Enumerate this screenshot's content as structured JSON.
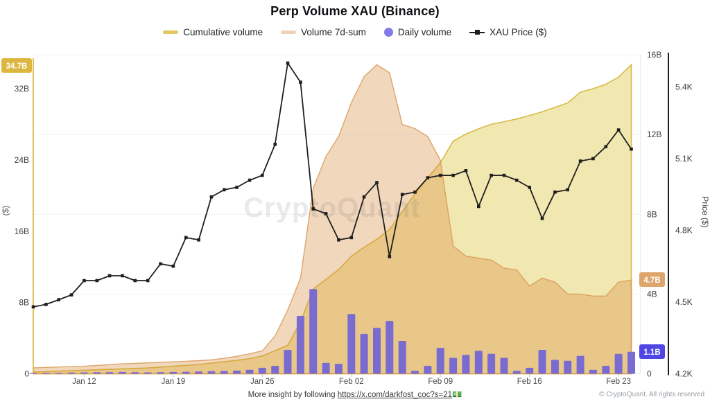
{
  "header": {
    "title": "Perp Volume XAU (Binance)"
  },
  "legend": [
    {
      "label": "Cumulative volume",
      "type": "line",
      "color": "#E2C65F"
    },
    {
      "label": "Volume 7d-sum",
      "type": "line",
      "color": "#EFD2B6"
    },
    {
      "label": "Daily volume",
      "type": "circle",
      "color": "#837AE8"
    },
    {
      "label": "XAU Price ($)",
      "type": "line-marker",
      "color": "#1F1F1F"
    }
  ],
  "watermark": "CryptoQuant",
  "badges": {
    "cumulative": "34.7B",
    "sevenday": "4.7B",
    "daily": "1.1B"
  },
  "footer": {
    "prefix": "More insight by following ",
    "link": "https://x.com/darkfost_coc?s=21",
    "emoji": "💵",
    "copyright": "© CryptoQuant. All rights reserved"
  },
  "colors": {
    "cumulative_fill": "#F1E7B0",
    "cumulative_line": "#D9B945",
    "sevenday_fill": "rgba(214,139,60,0.34)",
    "sevenday_line": "rgba(216,153,88,0.85)",
    "bar": "#7A6BD1",
    "price_line": "#1F1F1F",
    "badge_cumulative": "#DDB63F",
    "badge_sevenday": "#DDA56B",
    "badge_daily": "#4F46E5",
    "grid": "#F2F2F4",
    "baseline": "#E0E0E0",
    "separator": "#ECECEC",
    "price_axis": "#1F1F1F",
    "axis_text": "#3D3D3D",
    "x_text": "#4A4A4A",
    "watermark_text": "#6B6F76"
  },
  "chart_data": {
    "type": "mixed",
    "title": "Perp Volume XAU (Binance)",
    "x": [
      "Jan 8",
      "Jan 9",
      "Jan 10",
      "Jan 11",
      "Jan 12",
      "Jan 13",
      "Jan 14",
      "Jan 15",
      "Jan 16",
      "Jan 17",
      "Jan 18",
      "Jan 19",
      "Jan 20",
      "Jan 21",
      "Jan 22",
      "Jan 23",
      "Jan 24",
      "Jan 25",
      "Jan 26",
      "Jan 27",
      "Jan 28",
      "Jan 29",
      "Jan 30",
      "Jan 31",
      "Feb 1",
      "Feb 2",
      "Feb 3",
      "Feb 4",
      "Feb 5",
      "Feb 6",
      "Feb 7",
      "Feb 8",
      "Feb 9",
      "Feb 10",
      "Feb 11",
      "Feb 12",
      "Feb 13",
      "Feb 14",
      "Feb 15",
      "Feb 16",
      "Feb 17",
      "Feb 18",
      "Feb 19",
      "Feb 20",
      "Feb 21",
      "Feb 22",
      "Feb 23",
      "Feb 24"
    ],
    "x_tick_labels": [
      "Jan 12",
      "Jan 19",
      "Jan 26",
      "Feb 02",
      "Feb 09",
      "Feb 16",
      "Feb 23"
    ],
    "x_tick_indices": [
      4,
      11,
      18,
      25,
      32,
      39,
      46
    ],
    "series": [
      {
        "name": "Cumulative volume",
        "type": "area",
        "axis": "left_volume",
        "unit": "B",
        "values": [
          0.2,
          0.25,
          0.3,
          0.35,
          0.4,
          0.45,
          0.5,
          0.55,
          0.6,
          0.65,
          0.75,
          0.85,
          0.95,
          1.05,
          1.2,
          1.35,
          1.5,
          1.7,
          2.0,
          2.6,
          3.2,
          5.8,
          9.5,
          10.6,
          11.7,
          13.2,
          14.2,
          15.1,
          16.2,
          18.2,
          20.2,
          22.0,
          23.7,
          26.1,
          26.9,
          27.5,
          28.0,
          28.3,
          28.6,
          29.0,
          29.4,
          29.9,
          30.4,
          31.6,
          32.0,
          32.5,
          33.3,
          34.7
        ]
      },
      {
        "name": "Volume 7d-sum",
        "type": "area",
        "axis": "right_volume",
        "unit": "B",
        "values": [
          0.3,
          0.32,
          0.34,
          0.36,
          0.38,
          0.42,
          0.46,
          0.5,
          0.52,
          0.55,
          0.58,
          0.6,
          0.63,
          0.66,
          0.7,
          0.78,
          0.88,
          1.0,
          1.15,
          1.9,
          3.2,
          4.8,
          9.3,
          10.9,
          11.9,
          13.6,
          14.9,
          15.5,
          15.1,
          12.5,
          12.3,
          11.9,
          10.7,
          6.4,
          5.9,
          5.8,
          5.7,
          5.3,
          5.2,
          4.4,
          4.8,
          4.6,
          4.0,
          4.0,
          3.9,
          3.9,
          4.6,
          4.7
        ]
      },
      {
        "name": "Daily volume",
        "type": "bar",
        "axis": "right_volume",
        "unit": "B",
        "values": [
          0.05,
          0.05,
          0.05,
          0.06,
          0.07,
          0.08,
          0.08,
          0.09,
          0.08,
          0.07,
          0.08,
          0.09,
          0.1,
          0.11,
          0.13,
          0.14,
          0.16,
          0.2,
          0.3,
          0.4,
          1.2,
          2.9,
          4.25,
          0.55,
          0.5,
          3.0,
          2.0,
          2.3,
          2.65,
          1.65,
          0.15,
          0.4,
          1.3,
          0.8,
          0.95,
          1.15,
          1.0,
          0.8,
          0.15,
          0.3,
          1.2,
          0.7,
          0.65,
          0.9,
          0.2,
          0.4,
          1.0,
          1.1
        ]
      },
      {
        "name": "XAU Price ($)",
        "type": "line",
        "axis": "right_price",
        "unit": "K",
        "values": [
          4.48,
          4.49,
          4.51,
          4.53,
          4.59,
          4.59,
          4.61,
          4.61,
          4.59,
          4.59,
          4.66,
          4.65,
          4.77,
          4.76,
          4.94,
          4.97,
          4.98,
          5.01,
          5.03,
          5.16,
          5.5,
          5.42,
          4.89,
          4.87,
          4.76,
          4.77,
          4.94,
          5.0,
          4.69,
          4.95,
          4.96,
          5.02,
          5.03,
          5.03,
          5.05,
          4.9,
          5.03,
          5.03,
          5.01,
          4.98,
          4.85,
          4.96,
          4.97,
          5.09,
          5.1,
          5.15,
          5.22,
          5.14
        ]
      }
    ],
    "axis_left_volume": {
      "label": "($)",
      "ticks": [
        "0",
        "8B",
        "16B",
        "24B",
        "32B"
      ],
      "tick_values": [
        0,
        8,
        16,
        24,
        32
      ],
      "range": [
        0,
        35.9
      ]
    },
    "axis_right_volume": {
      "label": "",
      "ticks": [
        "0",
        "4B",
        "8B",
        "12B",
        "16B"
      ],
      "tick_values": [
        0,
        4,
        8,
        12,
        16
      ],
      "range": [
        0,
        16
      ]
    },
    "axis_right_price": {
      "label": "Price ($)",
      "ticks": [
        "4.2K",
        "4.5K",
        "4.8K",
        "5.1K",
        "5.4K"
      ],
      "tick_values": [
        4.2,
        4.5,
        4.8,
        5.1,
        5.4
      ],
      "range": [
        4.2,
        5.54
      ]
    },
    "last_values": {
      "cumulative_volume": "34.7B",
      "volume_7d_sum": "4.7B",
      "daily_volume": "1.1B"
    },
    "grid": "horizontal-only",
    "legend_position": "top"
  }
}
